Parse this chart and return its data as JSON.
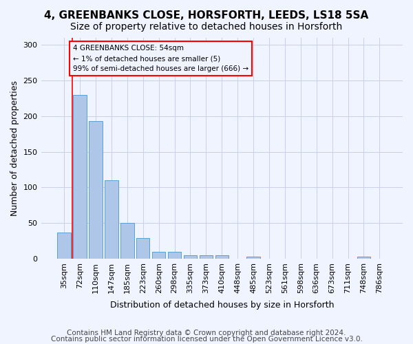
{
  "title": "4, GREENBANKS CLOSE, HORSFORTH, LEEDS, LS18 5SA",
  "subtitle": "Size of property relative to detached houses in Horsforth",
  "xlabel": "Distribution of detached houses by size in Horsforth",
  "ylabel": "Number of detached properties",
  "categories": [
    "35sqm",
    "72sqm",
    "110sqm",
    "147sqm",
    "185sqm",
    "223sqm",
    "260sqm",
    "298sqm",
    "335sqm",
    "373sqm",
    "410sqm",
    "448sqm",
    "485sqm",
    "523sqm",
    "561sqm",
    "598sqm",
    "636sqm",
    "673sqm",
    "711sqm",
    "748sqm",
    "786sqm"
  ],
  "values": [
    37,
    230,
    193,
    110,
    50,
    29,
    10,
    10,
    5,
    5,
    5,
    0,
    3,
    0,
    0,
    0,
    0,
    0,
    0,
    3,
    0
  ],
  "bar_color": "#aec6e8",
  "bar_edge_color": "#5a9fd4",
  "annotation_box_text": "4 GREENBANKS CLOSE: 54sqm\n← 1% of detached houses are smaller (5)\n99% of semi-detached houses are larger (666) →",
  "red_line_x": 0.5,
  "ylim": [
    0,
    310
  ],
  "yticks": [
    0,
    50,
    100,
    150,
    200,
    250,
    300
  ],
  "footer_line1": "Contains HM Land Registry data © Crown copyright and database right 2024.",
  "footer_line2": "Contains public sector information licensed under the Open Government Licence v3.0.",
  "bg_color": "#f0f4ff",
  "grid_color": "#c8cfe8",
  "title_fontsize": 11,
  "subtitle_fontsize": 10,
  "axis_label_fontsize": 9,
  "tick_fontsize": 8,
  "footer_fontsize": 7.5
}
